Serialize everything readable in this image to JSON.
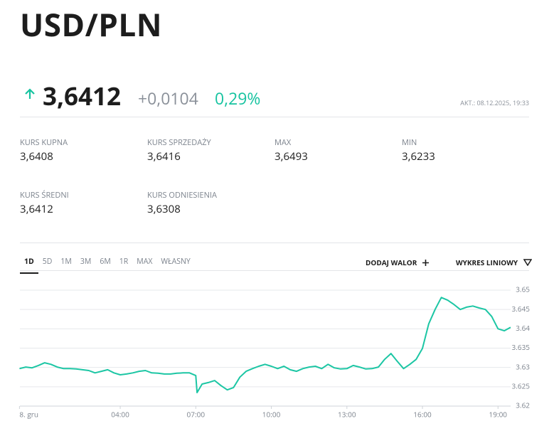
{
  "header": {
    "title": "USD/PLN"
  },
  "quote": {
    "price": "3,6412",
    "change": "+0,0104",
    "change_percent": "0,29%",
    "updated": "AKT.: 08.12.2025, 19:33"
  },
  "stats": [
    {
      "label": "KURS KUPNA",
      "value": "3,6408"
    },
    {
      "label": "KURS SPRZEDAŻY",
      "value": "3,6416"
    },
    {
      "label": "MAX",
      "value": "3,6493"
    },
    {
      "label": "MIN",
      "value": "3,6233"
    },
    {
      "label": "KURS ŚREDNI",
      "value": "3,6412"
    },
    {
      "label": "KURS ODNIESIENIA",
      "value": "3,6308"
    }
  ],
  "tabs": [
    "1D",
    "5D",
    "1M",
    "3M",
    "6M",
    "1R",
    "MAX",
    "WŁASNY"
  ],
  "actions": [
    "DODAJ WALOR",
    "WYKRES LINIOWY"
  ],
  "chart_data": {
    "type": "line",
    "color": "#1cc6a4",
    "grid": true,
    "x": [
      0,
      0.25,
      0.5,
      0.75,
      1,
      1.25,
      1.5,
      1.75,
      2,
      2.25,
      2.5,
      2.75,
      3,
      3.25,
      3.5,
      3.75,
      4,
      4.25,
      4.5,
      4.75,
      5,
      5.25,
      5.5,
      5.75,
      6,
      6.25,
      6.5,
      6.75,
      7,
      7.05,
      7.25,
      7.5,
      7.75,
      8,
      8.25,
      8.5,
      8.75,
      9,
      9.25,
      9.5,
      9.75,
      10,
      10.25,
      10.5,
      10.75,
      11,
      11.25,
      11.5,
      11.75,
      12,
      12.25,
      12.5,
      12.75,
      13,
      13.25,
      13.5,
      13.75,
      14,
      14.25,
      14.5,
      14.75,
      15,
      15.25,
      15.5,
      15.75,
      16,
      16.25,
      16.5,
      16.75,
      17,
      17.25,
      17.5,
      17.75,
      18,
      18.25,
      18.5,
      18.75,
      19,
      19.25,
      19.5
    ],
    "values": [
      3.6297,
      3.6301,
      3.6299,
      3.6305,
      3.6312,
      3.6308,
      3.6301,
      3.6297,
      3.6297,
      3.6296,
      3.6294,
      3.6292,
      3.6286,
      3.629,
      3.6294,
      3.6286,
      3.6281,
      3.6283,
      3.6286,
      3.629,
      3.6292,
      3.6286,
      3.6285,
      3.6283,
      3.6283,
      3.6285,
      3.6286,
      3.6286,
      3.6279,
      3.6235,
      3.6257,
      3.6261,
      3.6266,
      3.6253,
      3.6242,
      3.6248,
      3.6275,
      3.629,
      3.6297,
      3.6303,
      3.6308,
      3.6303,
      3.6297,
      3.6303,
      3.6294,
      3.629,
      3.6297,
      3.6301,
      3.6303,
      3.6297,
      3.6308,
      3.6299,
      3.6296,
      3.6297,
      3.6305,
      3.6301,
      3.6296,
      3.6297,
      3.6301,
      3.6321,
      3.6336,
      3.6316,
      3.6297,
      3.6308,
      3.6321,
      3.6349,
      3.6413,
      3.645,
      3.6481,
      3.6474,
      3.6463,
      3.645,
      3.6456,
      3.6459,
      3.6454,
      3.645,
      3.6432,
      3.64,
      3.6395,
      3.6404
    ],
    "xlim": [
      0,
      19.5
    ],
    "xticks": [
      {
        "value": 0,
        "label": "8. gru"
      },
      {
        "value": 4,
        "label": "04:00"
      },
      {
        "value": 7,
        "label": "07:00"
      },
      {
        "value": 10,
        "label": "10:00"
      },
      {
        "value": 13,
        "label": "13:00"
      },
      {
        "value": 16,
        "label": "16:00"
      },
      {
        "value": 19,
        "label": "19:00"
      }
    ],
    "ylim": [
      3.62,
      3.65
    ],
    "yticks": [
      3.62,
      3.625,
      3.63,
      3.635,
      3.64,
      3.645,
      3.65
    ]
  }
}
